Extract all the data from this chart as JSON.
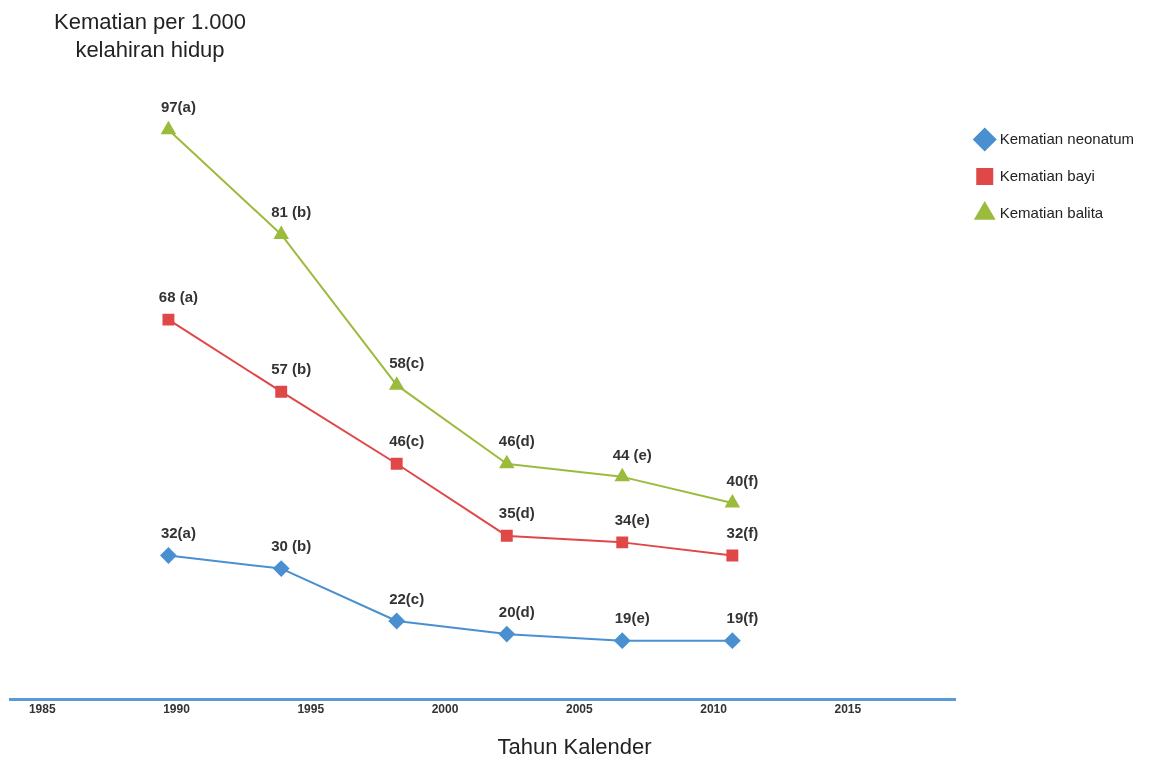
{
  "chart_data": {
    "type": "line",
    "ylabel": "Kematian per 1.000 kelahiran hidup",
    "xlabel": "Tahun Kalender",
    "x": [
      1989.7,
      1993.9,
      1998.2,
      2002.3,
      2006.6,
      2010.7
    ],
    "xlim": [
      1983.8,
      2019
    ],
    "xticks": [
      1985,
      1990,
      1995,
      2000,
      2005,
      2010,
      2015
    ],
    "tick_labels": "x",
    "grid": false,
    "legend": "top right",
    "series": [
      {
        "name": "Kematian neonatum",
        "color": "#4a90d0",
        "marker": "diamond",
        "values": [
          32,
          30,
          22,
          20,
          19,
          19
        ],
        "value_labels": [
          "32(a)",
          "30 (b)",
          "22(c)",
          "20(d)",
          "19(e)",
          "19(f)"
        ]
      },
      {
        "name": "Kematian bayi",
        "color": "#e04848",
        "marker": "square",
        "values": [
          68,
          57,
          46,
          35,
          34,
          32
        ],
        "value_labels": [
          "68 (a)",
          "57 (b)",
          "46(c)",
          "35(d)",
          "34(e)",
          "32(f)"
        ]
      },
      {
        "name": "Kematian balita",
        "color": "#9bbb3c",
        "marker": "triangle",
        "values": [
          97,
          81,
          58,
          46,
          44,
          40
        ],
        "value_labels": [
          "97(a)",
          "81 (b)",
          "58(c)",
          "46(d)",
          "44 (e)",
          "40(f)"
        ]
      }
    ]
  }
}
